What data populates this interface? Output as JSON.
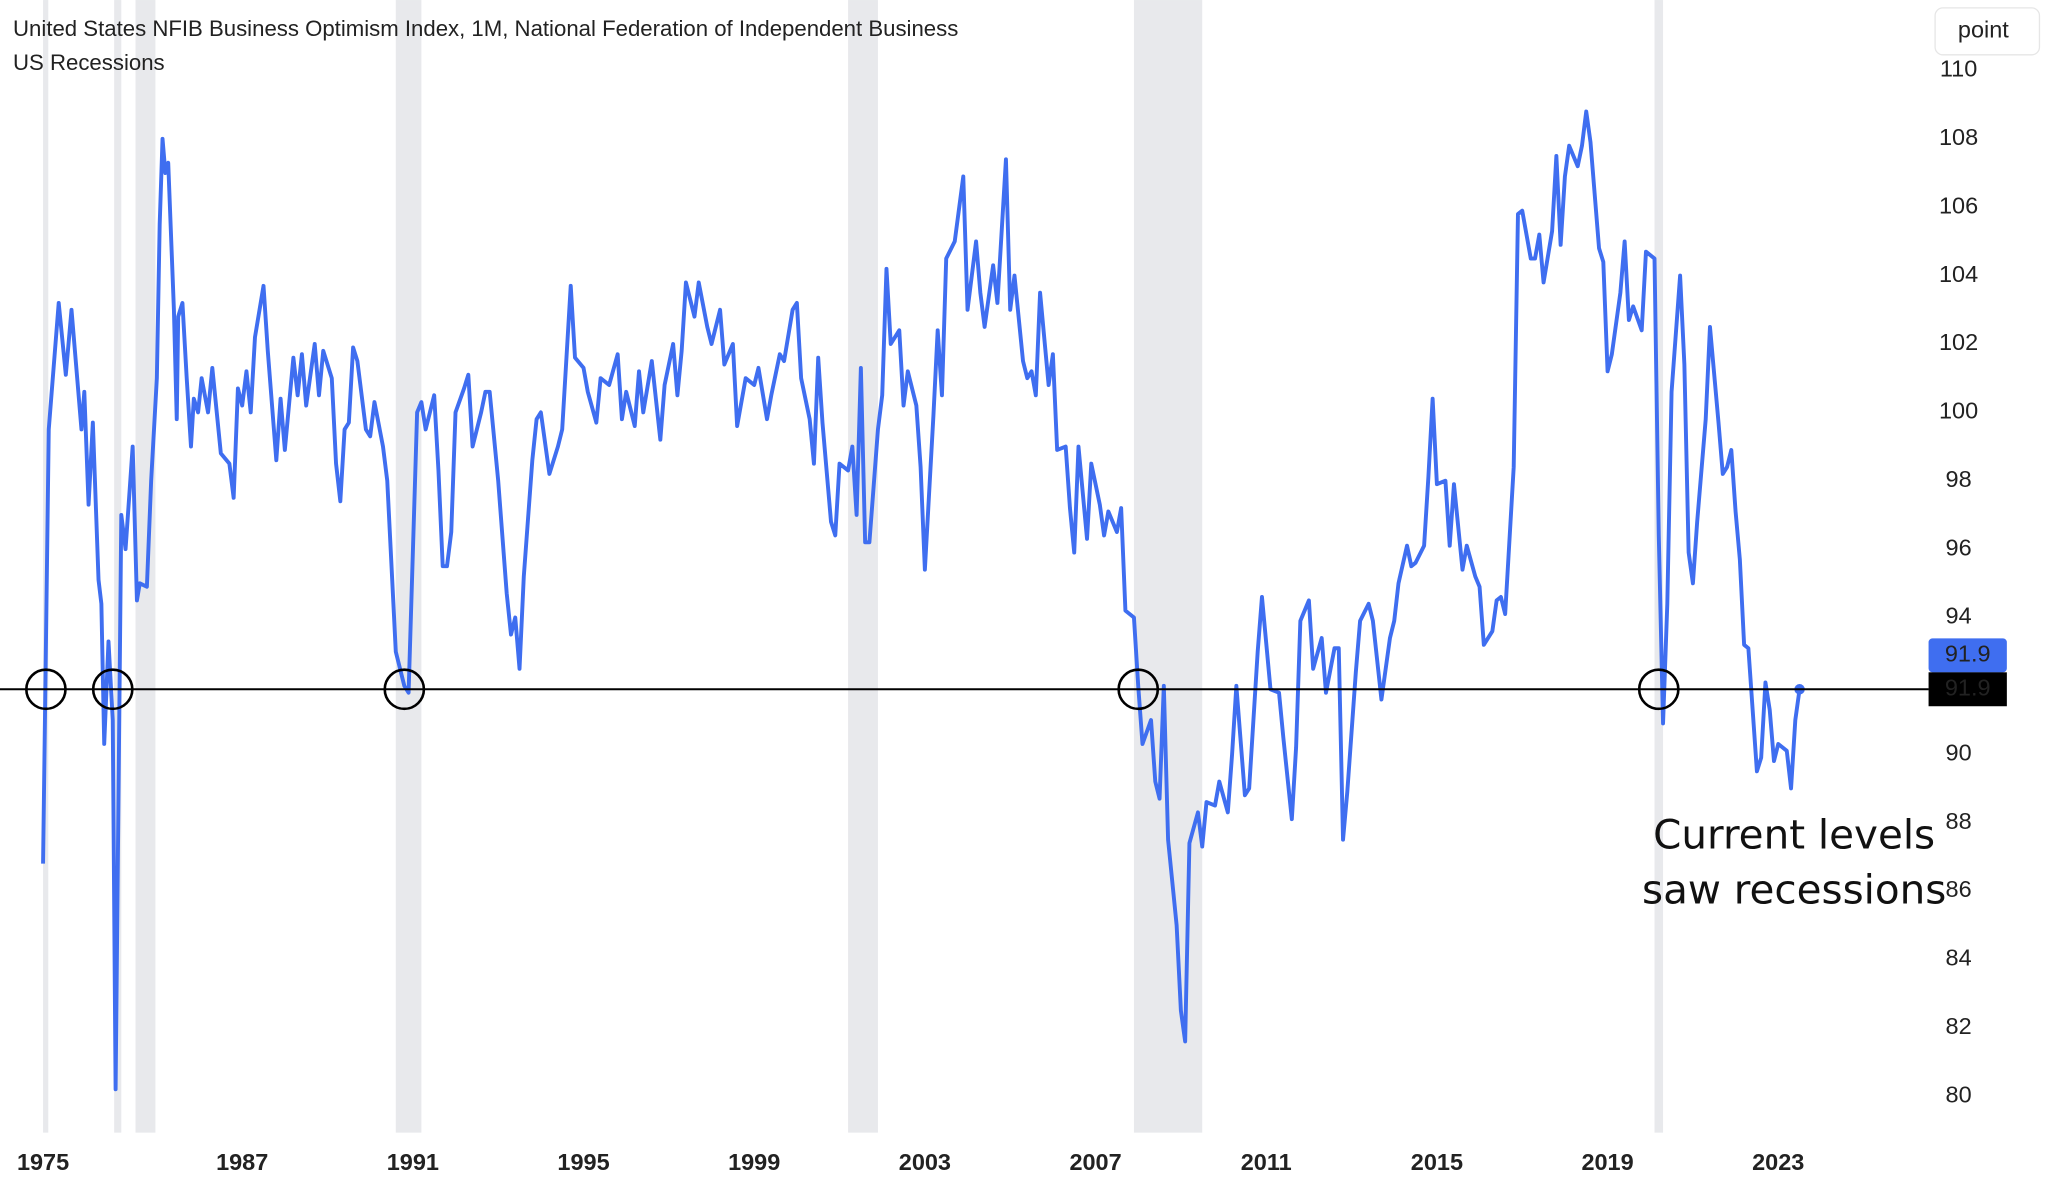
{
  "chart_data": {
    "type": "line",
    "series": [
      {
        "name": "United States NFIB Business Optimism Index, 1M, National Federation of Independent Business",
        "color": "#3f6ef0",
        "x": [
          1975.0,
          1975.4,
          1976.1,
          1976.6,
          1977.0,
          1977.7,
          1977.9,
          1978.2,
          1978.5,
          1978.9,
          1979.1,
          1979.3,
          1979.6,
          1979.9,
          1980.1,
          1980.5,
          1980.8,
          1981.3,
          1981.6,
          1981.8,
          1982.3,
          1982.6,
          1983.0,
          1983.2,
          1983.4,
          1983.6,
          1983.8,
          1984.2,
          1984.4,
          1984.5,
          1984.8,
          1985.1,
          1985.4,
          1985.6,
          1985.9,
          1986.05,
          1986.2,
          1986.3,
          1986.5,
          1986.7,
          1986.8,
          1986.9,
          1987.0,
          1987.1,
          1987.2,
          1987.3,
          1987.5,
          1987.6,
          1987.8,
          1987.9,
          1988.0,
          1988.2,
          1988.3,
          1988.4,
          1988.5,
          1988.7,
          1988.8,
          1988.9,
          1989.1,
          1989.2,
          1989.3,
          1989.4,
          1989.5,
          1989.6,
          1989.7,
          1989.9,
          1990.0,
          1990.1,
          1990.3,
          1990.4,
          1990.6,
          1990.8,
          1990.9,
          1991.1,
          1991.2,
          1991.3,
          1991.5,
          1991.6,
          1991.7,
          1991.8,
          1991.9,
          1992.0,
          1992.2,
          1992.3,
          1992.4,
          1992.6,
          1992.7,
          1992.8,
          1993.0,
          1993.2,
          1993.3,
          1993.4,
          1993.5,
          1993.6,
          1993.8,
          1993.9,
          1994.0,
          1994.2,
          1994.4,
          1994.5,
          1994.7,
          1994.8,
          1995.0,
          1995.1,
          1995.3,
          1995.4,
          1995.6,
          1995.8,
          1995.9,
          1996.0,
          1996.2,
          1996.3,
          1996.4,
          1996.6,
          1996.8,
          1996.9,
          1997.1,
          1997.2,
          1997.3,
          1997.4,
          1997.6,
          1997.7,
          1997.9,
          1998.0,
          1998.2,
          1998.3,
          1998.5,
          1998.6,
          1998.8,
          1999.0,
          1999.1,
          1999.3,
          1999.4,
          1999.6,
          1999.7,
          1999.9,
          2000.0,
          2000.1,
          2000.3,
          2000.4,
          2000.5,
          2000.6,
          2000.8,
          2000.9,
          2001.0,
          2001.2,
          2001.3,
          2001.4,
          2001.5,
          2001.6,
          2001.7,
          2001.9,
          2002.0,
          2002.1,
          2002.2,
          2002.4,
          2002.5,
          2002.6,
          2002.8,
          2002.9,
          2003.0,
          2003.2,
          2003.3,
          2003.4,
          2003.5,
          2003.7,
          2003.9,
          2004.0,
          2004.2,
          2004.3,
          2004.4,
          2004.6,
          2004.7,
          2004.9,
          2005.0,
          2005.1,
          2005.3,
          2005.4,
          2005.5,
          2005.6,
          2005.7,
          2005.9,
          2006.0,
          2006.1,
          2006.3,
          2006.4,
          2006.5,
          2006.6,
          2006.8,
          2006.9,
          2007.1,
          2007.2,
          2007.3,
          2007.5,
          2007.6,
          2007.7,
          2007.9,
          2008.0,
          2008.1,
          2008.3,
          2008.4,
          2008.5,
          2008.6,
          2008.7,
          2008.9,
          2009.0,
          2009.1,
          2009.2,
          2009.4,
          2009.5,
          2009.6,
          2009.8,
          2009.9,
          2010.1,
          2010.2,
          2010.3,
          2010.5,
          2010.6,
          2010.8,
          2010.9,
          2011.1,
          2011.3,
          2011.4,
          2011.6,
          2011.7,
          2011.8,
          2012.0,
          2012.1,
          2012.3,
          2012.4,
          2012.6,
          2012.7,
          2012.8,
          2012.9,
          2013.1,
          2013.2,
          2013.4,
          2013.5,
          2013.7,
          2013.9,
          2014.0,
          2014.1,
          2014.3,
          2014.4,
          2014.5,
          2014.7,
          2014.8,
          2014.9,
          2015.0,
          2015.2,
          2015.3,
          2015.4,
          2015.6,
          2015.7,
          2015.9,
          2016.0,
          2016.1,
          2016.3,
          2016.4,
          2016.5,
          2016.6,
          2016.8,
          2016.9,
          2017.0,
          2017.2,
          2017.3,
          2017.4,
          2017.5,
          2017.7,
          2017.8,
          2017.9,
          2018.0,
          2018.1,
          2018.3,
          2018.4,
          2018.5,
          2018.6,
          2018.8,
          2018.9,
          2019.0,
          2019.1,
          2019.3,
          2019.4,
          2019.5,
          2019.6,
          2019.8,
          2019.9,
          2020.1,
          2020.2,
          2020.3,
          2020.4,
          2020.5,
          2020.7,
          2020.8,
          2020.9,
          2021.0,
          2021.1,
          2021.3,
          2021.4,
          2021.6,
          2021.7,
          2021.8,
          2021.9,
          2022.0,
          2022.1,
          2022.2,
          2022.3,
          2022.5,
          2022.6,
          2022.7,
          2022.8,
          2022.9,
          2023.0,
          2023.2,
          2023.3,
          2023.4,
          2023.5
        ],
        "values": [
          86.8,
          99.5,
          103.2,
          101.1,
          103.0,
          99.5,
          100.6,
          97.3,
          99.7,
          95.1,
          94.4,
          90.3,
          93.3,
          91.0,
          80.2,
          97.0,
          96.0,
          99.0,
          94.5,
          95.0,
          94.9,
          98.0,
          101.0,
          105.5,
          108.0,
          107.0,
          107.3,
          103.0,
          99.8,
          102.8,
          103.2,
          101.0,
          99.0,
          100.4,
          100.0,
          101.0,
          100.0,
          101.3,
          98.8,
          98.5,
          97.5,
          100.7,
          100.2,
          101.2,
          100.0,
          102.2,
          103.7,
          101.8,
          98.6,
          100.4,
          98.9,
          101.6,
          100.5,
          101.7,
          100.2,
          102.0,
          100.5,
          101.8,
          101.0,
          98.5,
          97.4,
          99.5,
          99.7,
          101.9,
          101.5,
          99.5,
          99.3,
          100.3,
          99.0,
          98.0,
          93.0,
          92.0,
          91.8,
          100.0,
          100.3,
          99.5,
          100.5,
          98.3,
          95.5,
          95.5,
          96.5,
          100.0,
          100.7,
          101.1,
          99.0,
          100.0,
          100.6,
          100.6,
          98.0,
          94.7,
          93.5,
          94.0,
          92.5,
          95.2,
          98.6,
          99.8,
          100.0,
          98.2,
          99.0,
          99.5,
          103.7,
          101.6,
          101.3,
          100.6,
          99.7,
          101.0,
          100.8,
          101.7,
          99.8,
          100.6,
          99.6,
          101.2,
          100.0,
          101.5,
          99.2,
          100.8,
          102.0,
          100.5,
          101.8,
          103.8,
          102.8,
          103.8,
          102.5,
          102.0,
          103.0,
          101.4,
          102.0,
          99.6,
          101.0,
          100.8,
          101.3,
          99.8,
          100.5,
          101.7,
          101.5,
          103.0,
          103.2,
          101.0,
          99.8,
          98.5,
          101.6,
          99.7,
          96.8,
          96.4,
          98.5,
          98.3,
          99.0,
          97.0,
          101.3,
          96.2,
          96.2,
          99.5,
          100.5,
          104.2,
          102.0,
          102.4,
          100.2,
          101.2,
          100.2,
          98.4,
          95.4,
          99.9,
          102.4,
          100.5,
          104.5,
          105.0,
          106.9,
          103.0,
          105.0,
          103.5,
          102.5,
          104.3,
          103.2,
          107.4,
          103.0,
          104.0,
          101.5,
          101.0,
          101.2,
          100.5,
          103.5,
          100.8,
          101.7,
          98.9,
          99.0,
          97.2,
          95.9,
          99.0,
          96.3,
          98.5,
          97.3,
          96.4,
          97.1,
          96.5,
          97.2,
          94.2,
          94.0,
          92.0,
          90.3,
          91.0,
          89.2,
          88.7,
          92.0,
          87.5,
          85.0,
          82.5,
          81.6,
          87.4,
          88.3,
          87.3,
          88.6,
          88.5,
          89.2,
          88.3,
          90.0,
          92.0,
          88.8,
          89.0,
          93.0,
          94.6,
          91.9,
          91.8,
          90.5,
          88.1,
          90.2,
          93.9,
          94.5,
          92.5,
          93.4,
          91.8,
          93.1,
          93.1,
          87.5,
          88.9,
          92.4,
          93.9,
          94.4,
          93.9,
          91.6,
          93.4,
          93.9,
          95.0,
          96.1,
          95.5,
          95.6,
          96.1,
          98.1,
          100.4,
          97.9,
          98.0,
          96.1,
          97.9,
          95.4,
          96.1,
          95.2,
          94.9,
          93.2,
          93.6,
          94.5,
          94.6,
          94.1,
          98.4,
          105.8,
          105.9,
          104.5,
          104.5,
          105.2,
          103.8,
          105.3,
          107.5,
          104.9,
          106.9,
          107.8,
          107.2,
          107.8,
          108.8,
          107.9,
          104.8,
          104.4,
          101.2,
          101.7,
          103.5,
          105.0,
          102.7,
          103.1,
          102.4,
          104.7,
          104.5,
          96.4,
          90.9,
          94.4,
          100.6,
          104.0,
          101.4,
          95.9,
          95.0,
          96.8,
          99.8,
          102.5,
          99.7,
          98.2,
          98.4,
          98.9,
          97.1,
          95.7,
          93.2,
          93.1,
          89.5,
          89.9,
          92.1,
          91.3,
          89.8,
          90.3,
          90.1,
          89.0,
          91.0,
          91.9
        ]
      }
    ],
    "recessions": {
      "name": "US Recessions",
      "color": "#e8e9ec",
      "periods": [
        [
          1975.0,
          1975.2
        ],
        [
          1980.0,
          1980.5
        ],
        [
          1981.5,
          1982.9
        ],
        [
          1990.6,
          1991.2
        ],
        [
          2001.2,
          2001.9
        ],
        [
          2007.9,
          2009.5
        ],
        [
          2020.1,
          2020.3
        ]
      ]
    },
    "hline": 91.9,
    "circled_x": [
      1975.2,
      1979.9,
      1990.8,
      2008.0,
      2020.2
    ],
    "annotation": [
      "Current levels",
      "saw recessions"
    ],
    "y_unit": "point",
    "xlim": [
      1975.0,
      2026.5
    ],
    "xticks": [
      1975,
      1987,
      1991,
      1995,
      1999,
      2003,
      2007,
      2011,
      2015,
      2019,
      2023
    ],
    "ylim": [
      78.95,
      111.2
    ],
    "yticks": [
      80,
      82,
      84,
      86,
      88,
      90,
      94,
      96,
      98,
      100,
      102,
      104,
      106,
      108,
      110
    ],
    "grid": false
  }
}
